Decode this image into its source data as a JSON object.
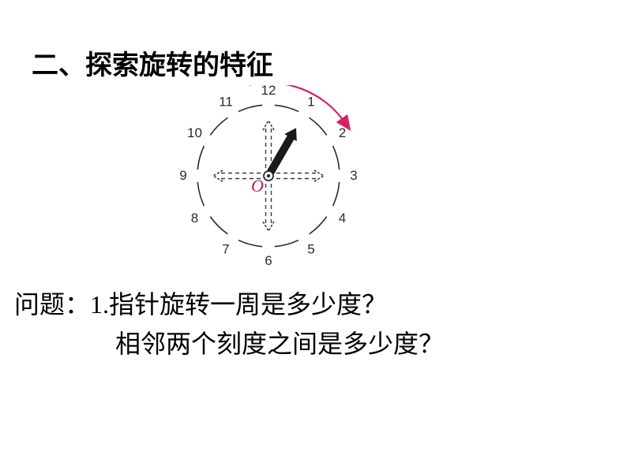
{
  "heading": "二、探索旋转的特征",
  "clock": {
    "numbers": [
      "12",
      "1",
      "2",
      "3",
      "4",
      "5",
      "6",
      "7",
      "8",
      "9",
      "10",
      "11"
    ],
    "number_font_size": 17,
    "number_color": "#2b2b2b",
    "radius": 90,
    "number_offset": 18,
    "dash_segments": 12,
    "dash_color": "#2b2b2b",
    "dash_width": 1.6,
    "center_dot_color": "#2b2b2b",
    "center_label": "O",
    "center_label_color": "#c2185b",
    "cross_arrow_color": "#3a3a3a",
    "cross_arrow_dash": "5,4",
    "cross_arrow_width": 2,
    "cross_arrow_len": 70,
    "hand_angle_deg": 30,
    "hand_length": 70,
    "hand_color": "#1a1a1a",
    "hand_width": 10,
    "arc_color": "#d6226a",
    "arc_width": 2.2,
    "arc_start_deg": -12,
    "arc_end_deg": 55,
    "arc_radius": 118
  },
  "questions": {
    "prefix": "问题：",
    "line1": "1.指针旋转一周是多少度？",
    "line2": "相邻两个刻度之间是多少度？"
  }
}
